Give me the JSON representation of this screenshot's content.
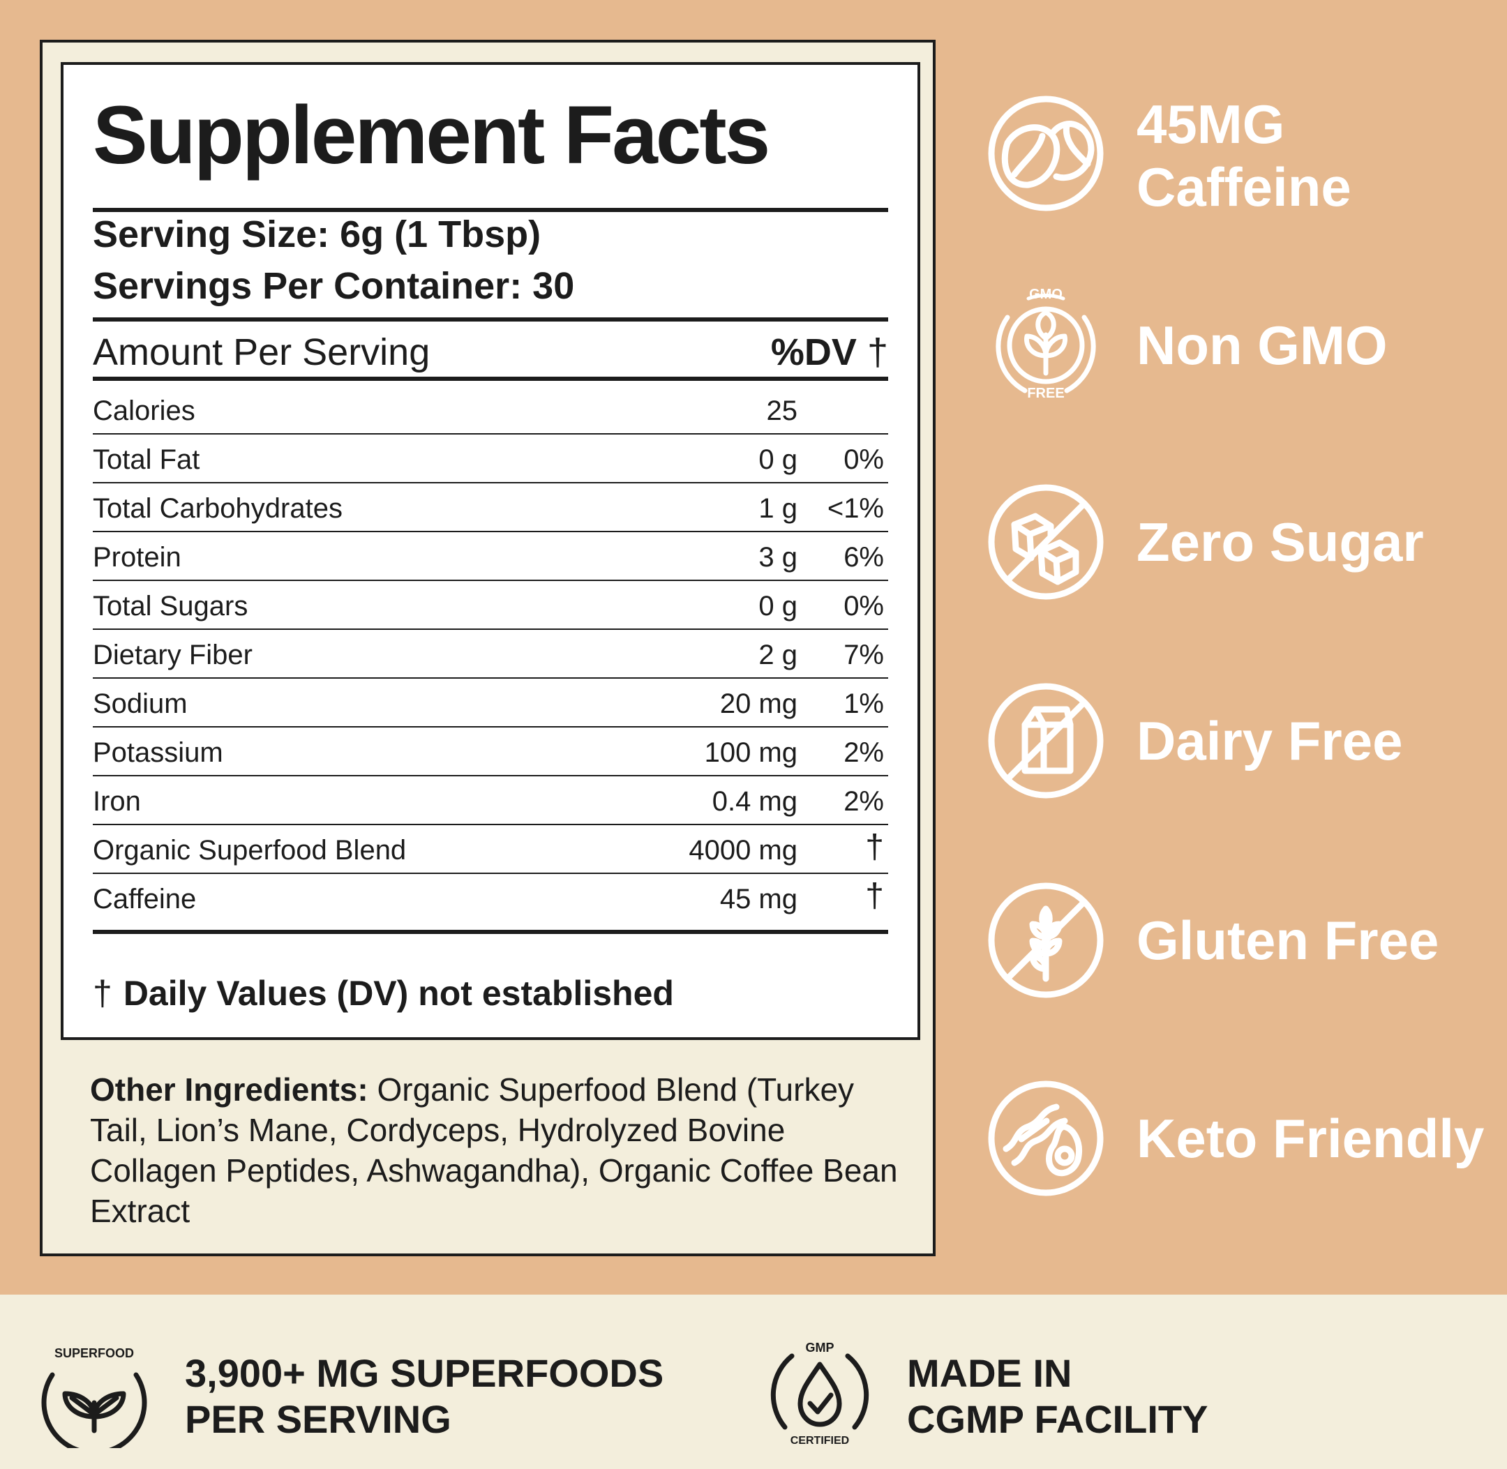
{
  "facts": {
    "title": "Supplement Facts",
    "serving_size": "Serving Size: 6g (1 Tbsp)",
    "servings_per_container": "Servings Per Container: 30",
    "amount_per_serving": "Amount Per Serving",
    "dv_header": "%DV",
    "dagger": "†",
    "rows": [
      {
        "name": "Calories",
        "amount": "25",
        "dv": ""
      },
      {
        "name": "Total Fat",
        "amount": "0 g",
        "dv": "0%"
      },
      {
        "name": "Total Carbohydrates",
        "amount": "1 g",
        "dv": "<1%"
      },
      {
        "name": "Protein",
        "amount": "3 g",
        "dv": "6%"
      },
      {
        "name": "Total Sugars",
        "amount": "0 g",
        "dv": "0%"
      },
      {
        "name": "Dietary Fiber",
        "amount": "2 g",
        "dv": "7%"
      },
      {
        "name": "Sodium",
        "amount": "20 mg",
        "dv": "1%"
      },
      {
        "name": "Potassium",
        "amount": "100 mg",
        "dv": "2%"
      },
      {
        "name": "Iron",
        "amount": "0.4 mg",
        "dv": "2%"
      },
      {
        "name": "Organic Superfood Blend",
        "amount": "4000 mg",
        "dv": "†"
      },
      {
        "name": "Caffeine",
        "amount": "45 mg",
        "dv": "†"
      }
    ],
    "footnote": "Daily Values (DV) not established"
  },
  "ingredients": {
    "label": "Other Ingredients:",
    "text": "Organic Superfood Blend (Turkey Tail, Lion’s Mane, Cordyceps, Hydrolyzed Bovine Collagen Peptides, Ashwagandha), Organic Coffee Bean Extract"
  },
  "badges": [
    {
      "icon": "coffee-bean-icon",
      "line1": "45MG",
      "line2": "Caffeine"
    },
    {
      "icon": "gmo-free-leaf-icon",
      "line1": "Non GMO",
      "ring_top": "GMO",
      "ring_bottom": "FREE"
    },
    {
      "icon": "no-sugar-cubes-icon",
      "line1": "Zero Sugar"
    },
    {
      "icon": "no-milk-carton-icon",
      "line1": "Dairy Free"
    },
    {
      "icon": "no-wheat-icon",
      "line1": "Gluten Free"
    },
    {
      "icon": "bacon-avocado-icon",
      "line1": "Keto Friendly"
    }
  ],
  "band": {
    "superfood": {
      "icon": "superfood-leaf-icon",
      "ring": "SUPERFOOD",
      "line1": "3,900+ MG SUPERFOODS",
      "line2": "PER SERVING"
    },
    "gmp": {
      "icon": "gmp-certified-icon",
      "ring_top": "GMP",
      "ring_bottom": "CERTIFIED",
      "line1": "MADE IN",
      "line2": "CGMP FACILITY"
    }
  },
  "colors": {
    "background": "#e6b98f",
    "panel": "#f3eedc",
    "ink": "#1c1c1c",
    "badge_text": "#ffffff"
  }
}
